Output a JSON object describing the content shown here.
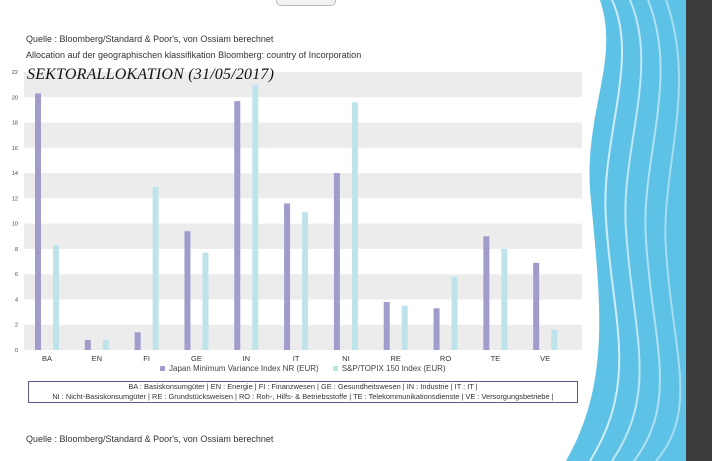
{
  "notes": {
    "source_top": "Quelle : Bloomberg/Standard & Poor's, von Ossiam berechnet",
    "allocation": "Allocation auf der geographischen klassifikation Bloomberg: country of Incorporation",
    "source_bottom": "Quelle : Bloomberg/Standard & Poor's, von Ossiam berechnet"
  },
  "abbreviations": {
    "line1": "BA : Basiskonsumgüter | EN : Energie | FI : Finanzwesen | GE : Gesundheitswesen | IN : Industrie | IT : IT |",
    "line2": "NI : Nicht-Basiskonsumgüter | RE : Grundstücksweisen | RO : Roh-, Hilfs- & Betriebsstoffe | TE : Telekommunikationsdienste | VE : Versorgungsbetriebe |"
  },
  "colors": {
    "series1": "#a09ccc",
    "series2": "#bfe3ea",
    "band": "#ececec",
    "accent_blue": "#5ec2e6",
    "dark_strip": "#3d3d3d"
  },
  "chart_data": {
    "type": "bar",
    "title": "SEKTORALLOKATION (31/05/2017)",
    "categories": [
      "BA",
      "EN",
      "FI",
      "GE",
      "IN",
      "IT",
      "NI",
      "RE",
      "RO",
      "TE",
      "VE"
    ],
    "series": [
      {
        "name": "Japan Minimum Variance Index NR (EUR)",
        "values": [
          20.3,
          0.8,
          1.4,
          9.4,
          19.7,
          11.6,
          14.0,
          3.8,
          3.3,
          9.0,
          6.9
        ]
      },
      {
        "name": "S&P/TOPIX 150 Index (EUR)",
        "values": [
          8.3,
          0.8,
          12.9,
          7.7,
          21.0,
          10.9,
          19.6,
          3.5,
          5.8,
          8.0,
          1.6
        ]
      }
    ],
    "yticks": [
      "0",
      "2",
      "4",
      "6",
      "8",
      "10",
      "12",
      "14",
      "16",
      "18",
      "20",
      "22"
    ],
    "ylim": [
      0,
      22
    ],
    "grid": "alternating bands",
    "legend_position": "bottom"
  }
}
